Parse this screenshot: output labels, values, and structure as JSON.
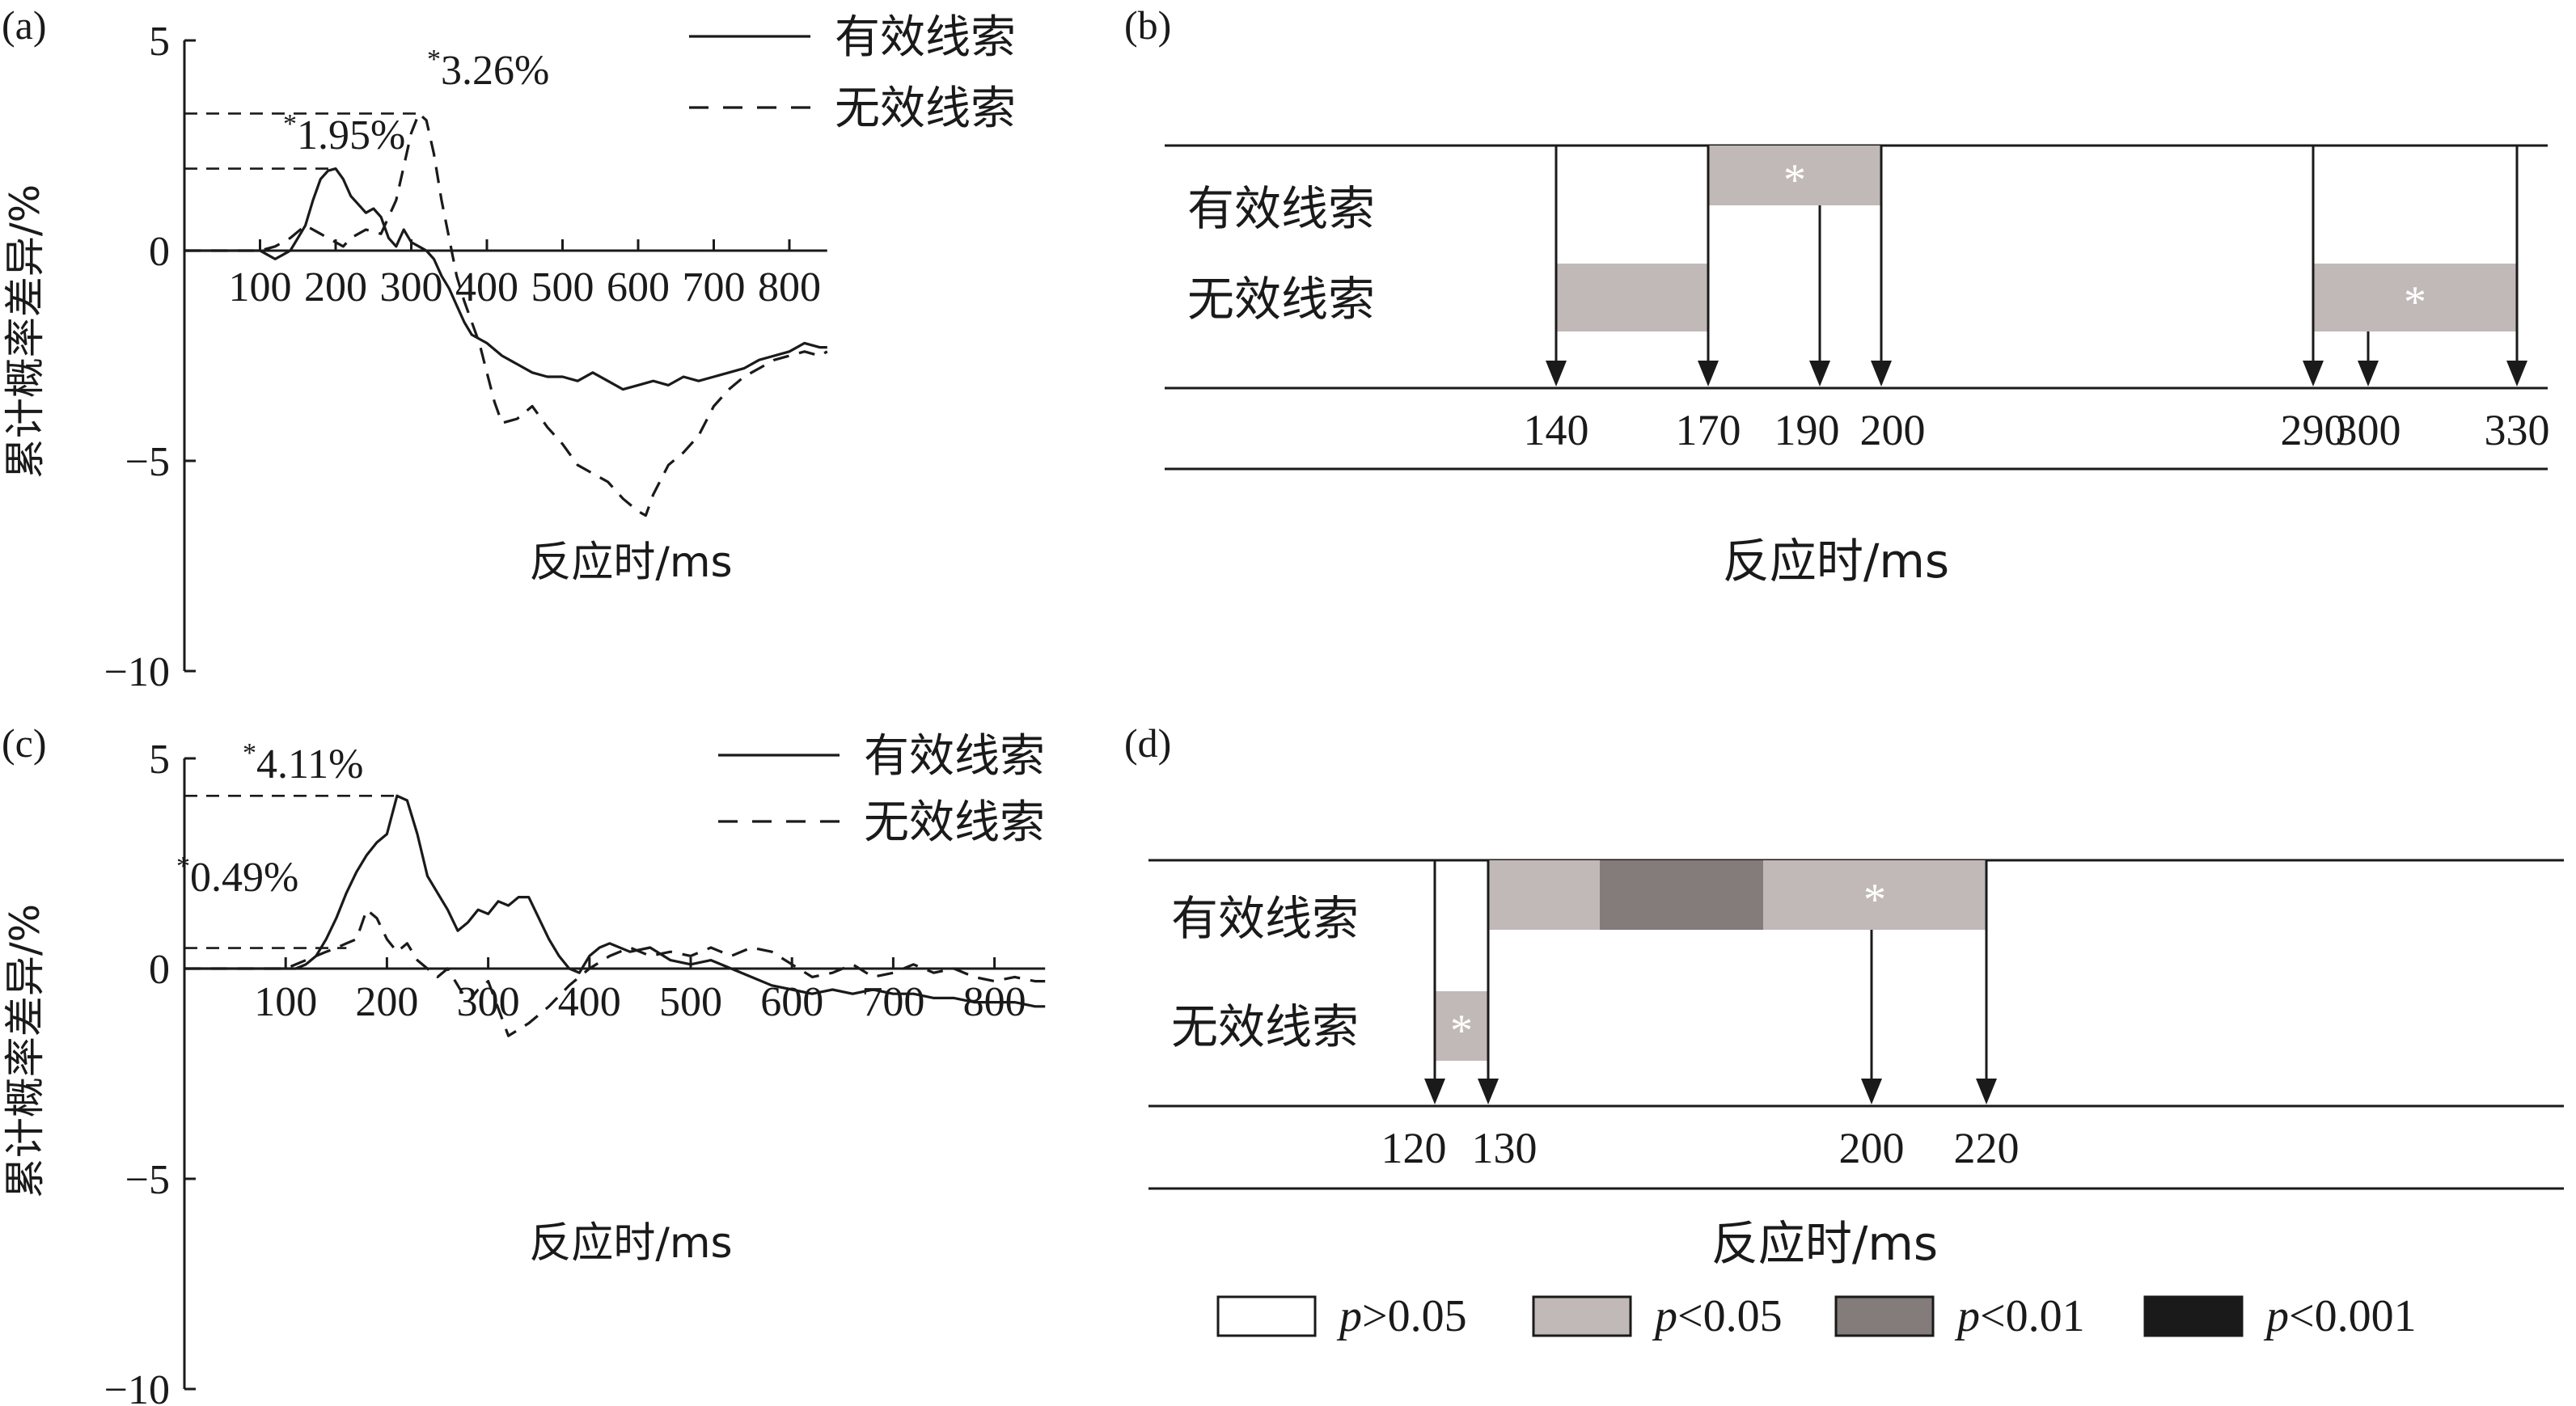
{
  "chart_data": [
    {
      "panel_label": "(a)",
      "type": "line",
      "ylabel": "累计概率差异/%",
      "xlabel": "反应时/ms",
      "xticks": [
        100,
        200,
        300,
        400,
        500,
        600,
        700,
        800
      ],
      "yticks": [
        5,
        0,
        -5,
        -10
      ],
      "xlim": [
        0,
        850
      ],
      "ylim": [
        -10,
        5
      ],
      "legend": {
        "position": "top-right",
        "entries": [
          "有效线索",
          "无效线索"
        ]
      },
      "annotations": [
        {
          "star": "*",
          "text": "1.95%",
          "x": 200,
          "y": 1.95
        },
        {
          "star": "*",
          "text": "3.26%",
          "x": 310,
          "y": 3.26
        }
      ],
      "series": [
        {
          "name": "有效线索",
          "style": "solid",
          "x": [
            0,
            100,
            110,
            120,
            130,
            140,
            150,
            160,
            170,
            180,
            190,
            200,
            210,
            220,
            230,
            240,
            250,
            260,
            270,
            280,
            290,
            300,
            310,
            320,
            330,
            340,
            350,
            360,
            370,
            380,
            400,
            420,
            440,
            460,
            480,
            500,
            520,
            540,
            560,
            580,
            600,
            620,
            640,
            660,
            680,
            700,
            720,
            740,
            760,
            780,
            800,
            820,
            840,
            850
          ],
          "y": [
            0,
            0,
            -0.1,
            -0.2,
            -0.1,
            0,
            0.3,
            0.6,
            1.2,
            1.7,
            1.9,
            1.95,
            1.7,
            1.3,
            1.1,
            0.9,
            1.0,
            0.8,
            0.3,
            0.1,
            0.5,
            0.2,
            0.1,
            0,
            -0.2,
            -0.6,
            -0.9,
            -1.3,
            -1.7,
            -2.0,
            -2.2,
            -2.5,
            -2.7,
            -2.9,
            -3.0,
            -3.0,
            -3.1,
            -2.9,
            -3.1,
            -3.3,
            -3.2,
            -3.1,
            -3.2,
            -3.0,
            -3.1,
            -3.0,
            -2.9,
            -2.8,
            -2.6,
            -2.5,
            -2.4,
            -2.2,
            -2.3,
            -2.3
          ]
        },
        {
          "name": "无效线索",
          "style": "dashed",
          "x": [
            0,
            100,
            120,
            140,
            160,
            180,
            200,
            210,
            220,
            240,
            260,
            280,
            290,
            300,
            310,
            320,
            330,
            340,
            350,
            360,
            370,
            380,
            390,
            400,
            410,
            420,
            440,
            460,
            480,
            500,
            520,
            540,
            560,
            580,
            600,
            610,
            620,
            640,
            660,
            680,
            700,
            720,
            740,
            760,
            780,
            800,
            820,
            840,
            850
          ],
          "y": [
            0,
            0,
            0.1,
            0.3,
            0.6,
            0.4,
            0.2,
            0.1,
            0.3,
            0.5,
            0.4,
            1.2,
            2.0,
            2.8,
            3.26,
            3.1,
            2.3,
            1.2,
            0.3,
            -0.6,
            -1.2,
            -1.7,
            -2.2,
            -2.9,
            -3.6,
            -4.1,
            -4.0,
            -3.7,
            -4.2,
            -4.6,
            -5.1,
            -5.3,
            -5.5,
            -5.9,
            -6.2,
            -6.3,
            -5.8,
            -5.1,
            -4.8,
            -4.4,
            -3.7,
            -3.3,
            -3.0,
            -2.8,
            -2.6,
            -2.5,
            -2.4,
            -2.5,
            -2.4
          ]
        }
      ]
    },
    {
      "panel_label": "(b)",
      "type": "timeline",
      "xlabel": "反应时/ms",
      "rows": [
        "有效线索",
        "无效线索"
      ],
      "ticks": [
        "140",
        "170",
        "190",
        "200",
        "290",
        "300",
        "330"
      ],
      "tick_values": [
        140,
        170,
        190,
        200,
        290,
        300,
        330
      ],
      "arrow_times": [
        140,
        170,
        190,
        200,
        290,
        300,
        330
      ],
      "segments": [
        {
          "row": "有效线索",
          "start": 170,
          "end": 200,
          "level": "p<0.05",
          "star": "*"
        },
        {
          "row": "无效线索",
          "start": 140,
          "end": 170,
          "level": "p<0.05",
          "star": ""
        },
        {
          "row": "无效线索",
          "start": 290,
          "end": 330,
          "level": "p<0.05",
          "star": "*"
        }
      ]
    },
    {
      "panel_label": "(c)",
      "type": "line",
      "ylabel": "累计概率差异/%",
      "xlabel": "反应时/ms",
      "xticks": [
        100,
        200,
        300,
        400,
        500,
        600,
        700,
        800
      ],
      "yticks": [
        5,
        0,
        -5,
        -10
      ],
      "xlim": [
        0,
        850
      ],
      "ylim": [
        -10,
        5
      ],
      "legend": {
        "position": "top-right",
        "entries": [
          "有效线索",
          "无效线索"
        ]
      },
      "annotations": [
        {
          "star": "*",
          "text": "4.11%",
          "x": 210,
          "y": 4.11
        },
        {
          "star": "*",
          "text": "0.49%",
          "x": 160,
          "y": 0.49
        }
      ],
      "series": [
        {
          "name": "有效线索",
          "style": "solid",
          "x": [
            0,
            100,
            110,
            120,
            130,
            140,
            150,
            160,
            170,
            180,
            190,
            200,
            210,
            220,
            230,
            240,
            250,
            260,
            270,
            280,
            290,
            300,
            310,
            320,
            330,
            340,
            350,
            360,
            370,
            380,
            390,
            400,
            410,
            420,
            440,
            460,
            480,
            500,
            520,
            540,
            560,
            580,
            600,
            620,
            640,
            660,
            680,
            700,
            720,
            740,
            760,
            780,
            800,
            820,
            840,
            850
          ],
          "y": [
            0,
            0,
            0,
            0.1,
            0.3,
            0.7,
            1.2,
            1.8,
            2.3,
            2.7,
            3.0,
            3.2,
            4.11,
            4.0,
            3.2,
            2.2,
            1.8,
            1.4,
            0.9,
            1.1,
            1.4,
            1.3,
            1.6,
            1.5,
            1.7,
            1.7,
            1.2,
            0.7,
            0.3,
            0,
            -0.1,
            0.3,
            0.5,
            0.6,
            0.4,
            0.5,
            0.2,
            0.1,
            0.2,
            0,
            -0.2,
            -0.4,
            -0.5,
            -0.6,
            -0.5,
            -0.6,
            -0.5,
            -0.6,
            -0.6,
            -0.7,
            -0.7,
            -0.8,
            -0.8,
            -0.8,
            -0.9,
            -0.9
          ]
        },
        {
          "name": "无效线索",
          "style": "dashed",
          "x": [
            0,
            100,
            120,
            140,
            150,
            160,
            170,
            180,
            190,
            200,
            210,
            220,
            230,
            240,
            250,
            260,
            270,
            280,
            290,
            300,
            320,
            340,
            360,
            380,
            400,
            420,
            440,
            460,
            480,
            500,
            520,
            540,
            560,
            580,
            600,
            620,
            640,
            660,
            680,
            700,
            720,
            740,
            760,
            780,
            800,
            820,
            840,
            850
          ],
          "y": [
            0,
            0,
            0.2,
            0.4,
            0.49,
            0.6,
            0.7,
            1.4,
            1.2,
            0.7,
            0.4,
            0.6,
            0.2,
            0,
            -0.2,
            0,
            -0.4,
            -0.8,
            -0.5,
            -0.3,
            -1.6,
            -1.3,
            -0.9,
            -0.4,
            0,
            0.3,
            0.5,
            0.3,
            0.4,
            0.3,
            0.5,
            0.3,
            0.5,
            0.4,
            0.1,
            -0.2,
            -0.1,
            0.1,
            -0.2,
            -0.1,
            0.1,
            -0.1,
            0,
            -0.2,
            -0.3,
            -0.2,
            -0.3,
            -0.3
          ]
        }
      ]
    },
    {
      "panel_label": "(d)",
      "type": "timeline",
      "xlabel": "反应时/ms",
      "rows": [
        "有效线索",
        "无效线索"
      ],
      "ticks": [
        "120",
        "130",
        "200",
        "220"
      ],
      "tick_values": [
        120,
        130,
        200,
        220
      ],
      "arrow_times": [
        120,
        130,
        200,
        220
      ],
      "segments": [
        {
          "row": "有效线索",
          "start": 130,
          "end": 150,
          "level": "p<0.05",
          "star": ""
        },
        {
          "row": "有效线索",
          "start": 150,
          "end": 180,
          "level": "p<0.01",
          "star": ""
        },
        {
          "row": "有效线索",
          "start": 180,
          "end": 220,
          "level": "p<0.05",
          "star": "*"
        },
        {
          "row": "无效线索",
          "start": 120,
          "end": 130,
          "level": "p<0.05",
          "star": "*"
        }
      ]
    }
  ],
  "significance_legend": {
    "colors": {
      "p>0.05": "#ffffff",
      "p<0.05": "#c1b9b7",
      "p<0.01": "#847b7b",
      "p<0.001": "#1a1a1a"
    },
    "items": [
      {
        "key": "p>0.05",
        "p": "p",
        "rest": ">0.05"
      },
      {
        "key": "p<0.05",
        "p": "p",
        "rest": "<0.05"
      },
      {
        "key": "p<0.01",
        "p": "p",
        "rest": "<0.01"
      },
      {
        "key": "p<0.001",
        "p": "p",
        "rest": "<0.001"
      }
    ]
  }
}
